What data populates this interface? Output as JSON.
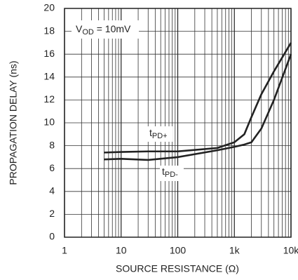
{
  "chart_data": {
    "type": "line",
    "x_label": "SOURCE RESISTANCE (Ω)",
    "y_label": "PROPAGATION DELAY (ns)",
    "annotation": "VOD = 10mV",
    "x": [
      5,
      10,
      30,
      100,
      500,
      1000,
      1500,
      2000,
      3000,
      5000,
      10000
    ],
    "series": [
      {
        "name": "tPD+",
        "color": "#222222",
        "values": [
          7.4,
          7.45,
          7.5,
          7.5,
          7.8,
          8.3,
          9.0,
          10.5,
          12.5,
          14.5,
          17.0
        ]
      },
      {
        "name": "tPD-",
        "color": "#222222",
        "values": [
          6.8,
          6.85,
          6.75,
          7.0,
          7.6,
          7.9,
          8.1,
          8.3,
          9.5,
          12.0,
          16.0
        ]
      }
    ],
    "xlim": [
      1,
      10000
    ],
    "ylim": [
      0,
      20
    ],
    "xlog": true,
    "grid": true,
    "xticks": [
      1,
      10,
      100,
      {
        "value": 1000,
        "label": "1k"
      },
      {
        "value": 10000,
        "label": "10k"
      }
    ],
    "yticks": [
      0,
      2,
      4,
      6,
      8,
      10,
      12,
      14,
      16,
      18,
      20
    ]
  }
}
